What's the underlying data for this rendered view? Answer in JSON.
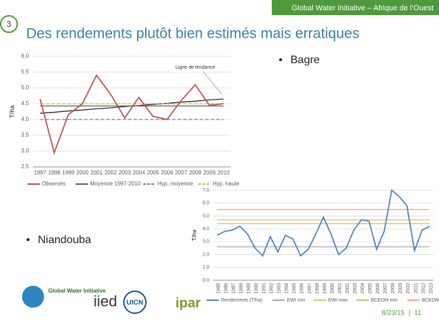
{
  "header": "Global Water Initiative – Afrique de l’Ouest",
  "slide_number": "3",
  "title": "Des rendements plutôt bien estimés mais erratiques",
  "bullets": [
    "Bagre",
    "Niandouba"
  ],
  "chart_data": [
    {
      "type": "line",
      "ylabel": "T/ha",
      "annotation": "Ligne de tendance",
      "categories": [
        "1997",
        "1998",
        "1999",
        "2000",
        "2001",
        "2002",
        "2003",
        "2004",
        "2005",
        "2006",
        "2007",
        "2008",
        "2009",
        "2010"
      ],
      "ylim": [
        2.5,
        6.0
      ],
      "yticks": [
        2.5,
        {
          "value": 3,
          "label": "3.0"
        },
        3.5,
        {
          "value": 4,
          "label": "4.0"
        },
        4.5,
        {
          "value": 5,
          "label": "5.0"
        },
        5.5,
        {
          "value": 6,
          "label": "6.0"
        }
      ],
      "grid": true,
      "legend": "bottom",
      "series": [
        {
          "name": "Observés",
          "color": "#c0504d",
          "style": "solid",
          "values": [
            4.65,
            2.95,
            4.15,
            4.5,
            5.4,
            4.8,
            4.05,
            4.7,
            4.1,
            4.0,
            4.6,
            5.1,
            4.45,
            4.5
          ]
        },
        {
          "name": "Moyenne 1997-2010",
          "color": "#595959",
          "style": "solid",
          "values": [
            4.43,
            4.43,
            4.43,
            4.43,
            4.43,
            4.43,
            4.43,
            4.43,
            4.43,
            4.43,
            4.43,
            4.43,
            4.43,
            4.43
          ]
        },
        {
          "name": "Hyp. moyenne",
          "color": "#4f81bd",
          "style": "dashed",
          "values": [
            4.0,
            4.0,
            4.0,
            4.0,
            4.0,
            4.0,
            4.0,
            4.0,
            4.0,
            4.0,
            4.0,
            4.0,
            4.0,
            4.0
          ]
        },
        {
          "name": "Hyp. haute",
          "color": "#c3c34a",
          "style": "dashed",
          "values": [
            4.5,
            4.5,
            4.5,
            4.5,
            4.5,
            4.5,
            4.5,
            4.5,
            4.5,
            4.5,
            4.5,
            4.5,
            4.5,
            4.5
          ]
        },
        {
          "color": "#262626",
          "style": "solid",
          "values": [
            4.2,
            4.23,
            4.27,
            4.3,
            4.34,
            4.37,
            4.41,
            4.44,
            4.48,
            4.51,
            4.55,
            4.58,
            4.62,
            4.65
          ]
        }
      ]
    },
    {
      "type": "line",
      "ylabel": "T/ha",
      "categories": [
        "1985",
        "1986",
        "1987",
        "1988",
        "1989",
        "1990",
        "1991",
        "1992",
        "1993",
        "1994",
        "1995",
        "1996",
        "1997",
        "1998",
        "1999",
        "2000",
        "2001",
        "2002",
        "2003",
        "2004",
        "2005",
        "2006",
        "2007",
        "2008",
        "2009",
        "2010",
        "2011",
        "2012",
        "2013"
      ],
      "ylim": [
        0,
        7
      ],
      "yticks": [
        {
          "value": 0,
          "label": "0.0"
        },
        {
          "value": 1,
          "label": "1.0"
        },
        {
          "value": 2,
          "label": "2.0"
        },
        {
          "value": 3,
          "label": "3.0"
        },
        {
          "value": 4,
          "label": "4.0"
        },
        {
          "value": 5,
          "label": "5.0"
        },
        {
          "value": 6,
          "label": "6.0"
        },
        {
          "value": 7,
          "label": "7.0"
        }
      ],
      "grid": true,
      "legend": "bottom",
      "series": [
        {
          "name": "Rendements (T/ha)",
          "color": "#4f81bd",
          "style": "solid",
          "values": [
            3.5,
            3.8,
            3.9,
            4.2,
            3.6,
            2.5,
            1.9,
            3.4,
            2.2,
            3.5,
            3.2,
            1.9,
            2.4,
            3.6,
            4.9,
            3.6,
            2.0,
            2.5,
            3.9,
            4.7,
            4.6,
            2.4,
            3.8,
            7.0,
            6.5,
            5.8,
            2.3,
            3.9,
            4.2
          ]
        },
        {
          "name": "EWI min",
          "color": "#a5a5a5",
          "style": "solid",
          "values": [
            2.6,
            2.6,
            2.6,
            2.6,
            2.6,
            2.6,
            2.6,
            2.6,
            2.6,
            2.6,
            2.6,
            2.6,
            2.6,
            2.6,
            2.6,
            2.6,
            2.6,
            2.6,
            2.6,
            2.6,
            2.6,
            2.6,
            2.6,
            2.6,
            2.6,
            2.6,
            2.6,
            2.6,
            2.6
          ]
        },
        {
          "name": "EWI max",
          "color": "#e6c84a",
          "style": "solid",
          "values": [
            4.7,
            4.7,
            4.7,
            4.7,
            4.7,
            4.7,
            4.7,
            4.7,
            4.7,
            4.7,
            4.7,
            4.7,
            4.7,
            4.7,
            4.7,
            4.7,
            4.7,
            4.7,
            4.7,
            4.7,
            4.7,
            4.7,
            4.7,
            4.7,
            4.7,
            4.7,
            4.7,
            4.7,
            4.7
          ]
        },
        {
          "name": "BCEOM min",
          "color": "#b5cf6b",
          "style": "solid",
          "values": [
            4.4,
            4.4,
            4.4,
            4.4,
            4.4,
            4.4,
            4.4,
            4.4,
            4.4,
            4.4,
            4.4,
            4.4,
            4.4,
            4.4,
            4.4,
            4.4,
            4.4,
            4.4,
            4.4,
            4.4,
            4.4,
            4.4,
            4.4,
            4.4,
            4.4,
            4.4,
            4.4,
            4.4,
            4.4
          ]
        },
        {
          "name": "BCEOM max",
          "color": "#f4a582",
          "style": "solid",
          "values": [
            5.5,
            5.5,
            5.5,
            5.5,
            5.5,
            5.5,
            5.5,
            5.5,
            5.5,
            5.5,
            5.5,
            5.5,
            5.5,
            5.5,
            5.5,
            5.5,
            5.5,
            5.5,
            5.5,
            5.5,
            5.5,
            5.5,
            5.5,
            5.5,
            5.5,
            5.5,
            5.5,
            5.5,
            5.5
          ]
        }
      ]
    }
  ],
  "logos": [
    "Global Water Initiative",
    "iied",
    "UICN",
    "ipar"
  ],
  "footer": {
    "date": "8/23/15",
    "page": "11"
  }
}
